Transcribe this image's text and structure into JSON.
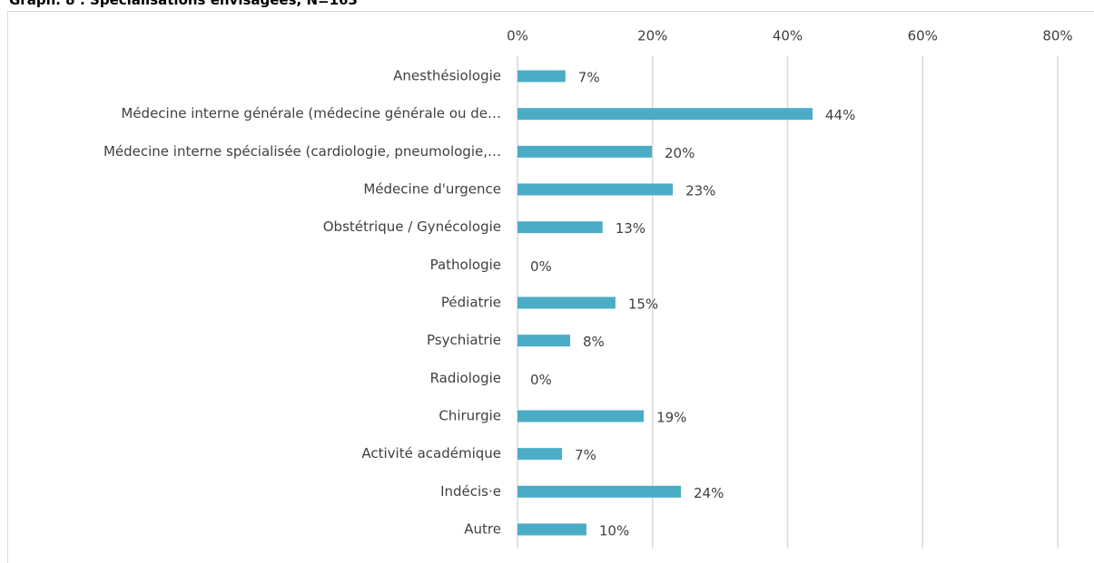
{
  "chart_data": {
    "type": "barh",
    "title": "Graph. 8 : Spécialisations envisagées, N=163",
    "categories": [
      "Anesthésiologie",
      "Médecine interne générale (médecine générale ou de…",
      "Médecine interne spécialisée (cardiologie, pneumologie,…",
      "Médecine d'urgence",
      "Obstétrique / Gynécologie",
      "Pathologie",
      "Pédiatrie",
      "Psychiatrie",
      "Radiologie",
      "Chirurgie",
      "Activité académique",
      "Indécis·e",
      "Autre"
    ],
    "values": [
      7.1,
      43.7,
      19.9,
      23.0,
      12.6,
      0,
      14.5,
      7.8,
      0,
      18.7,
      6.6,
      24.2,
      10.2
    ],
    "value_labels": [
      "7%",
      "44%",
      "20%",
      "23%",
      "13%",
      "0%",
      "15%",
      "8%",
      "0%",
      "19%",
      "7%",
      "24%",
      "10%"
    ],
    "color": "#4bacc6",
    "xlim": [
      0,
      80
    ],
    "xticks": [
      {
        "value": 0,
        "label": "0%"
      },
      {
        "value": 20,
        "label": "20%"
      },
      {
        "value": 40,
        "label": "40%"
      },
      {
        "value": 60,
        "label": "60%"
      },
      {
        "value": 80,
        "label": "80%"
      }
    ],
    "grid": true
  }
}
